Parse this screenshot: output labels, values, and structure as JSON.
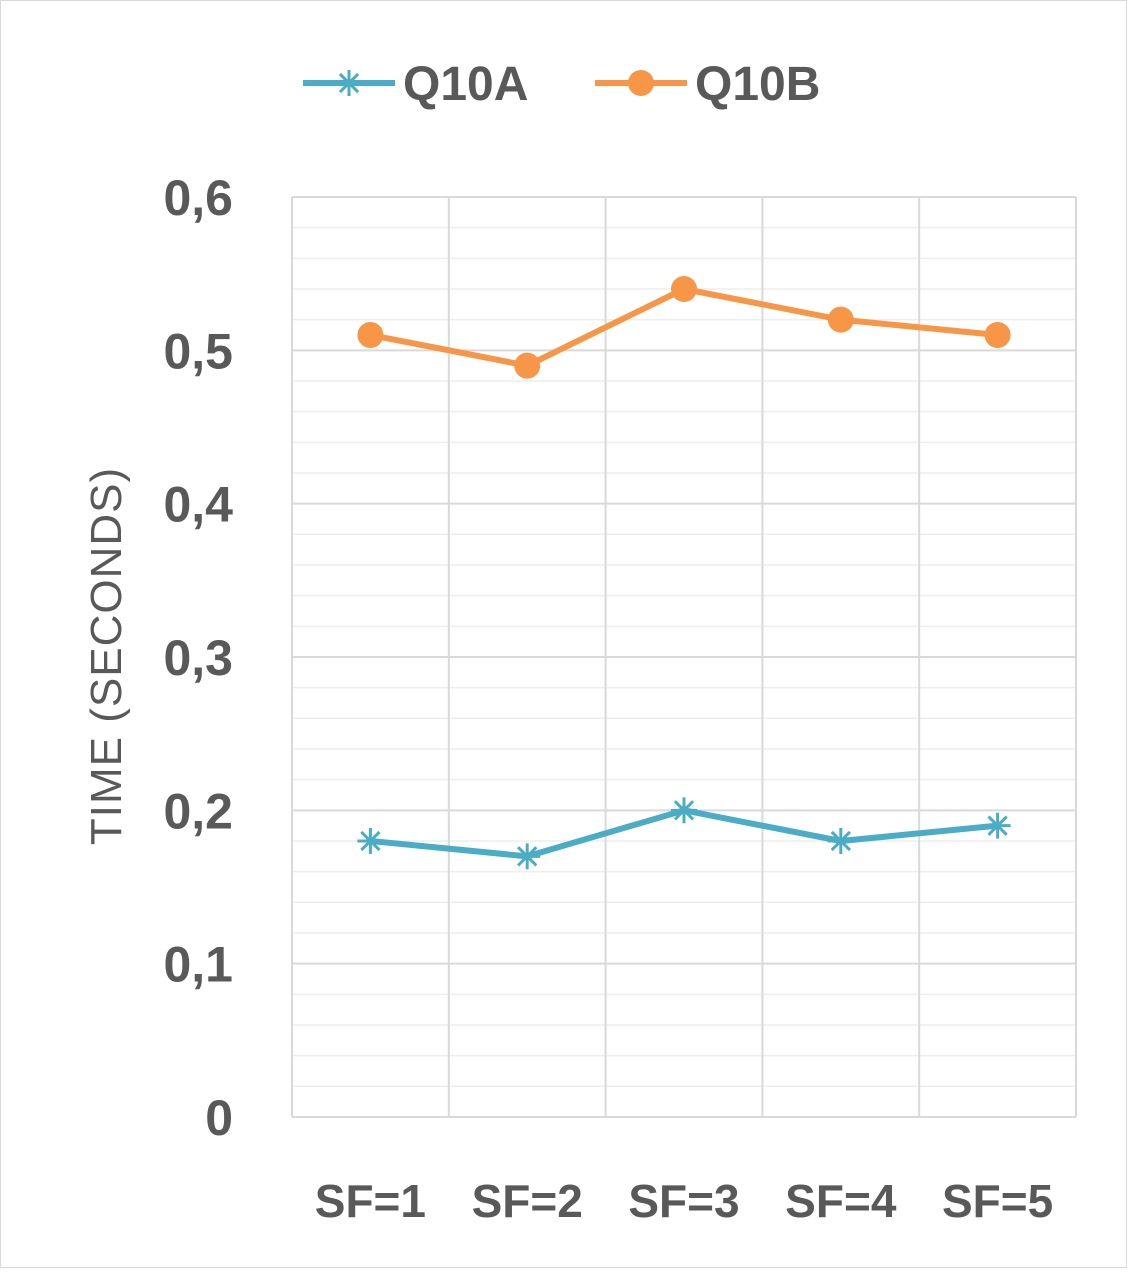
{
  "chart_data": {
    "type": "line",
    "title": "",
    "xlabel": "",
    "ylabel": "TIME (SECONDS)",
    "categories": [
      "SF=1",
      "SF=2",
      "SF=3",
      "SF=4",
      "SF=5"
    ],
    "ylim": [
      0,
      0.6
    ],
    "y_major_step": 0.1,
    "y_minor_step": 0.02,
    "y_tick_labels": [
      "0",
      "0,1",
      "0,2",
      "0,3",
      "0,4",
      "0,5",
      "0,6"
    ],
    "grid": true,
    "legend_position": "top",
    "series": [
      {
        "name": "Q10A",
        "values": [
          0.18,
          0.17,
          0.2,
          0.18,
          0.19
        ],
        "color": "#4bacc6",
        "marker": "asterisk"
      },
      {
        "name": "Q10B",
        "values": [
          0.51,
          0.49,
          0.54,
          0.52,
          0.51
        ],
        "color": "#f79646",
        "marker": "circle"
      }
    ]
  }
}
